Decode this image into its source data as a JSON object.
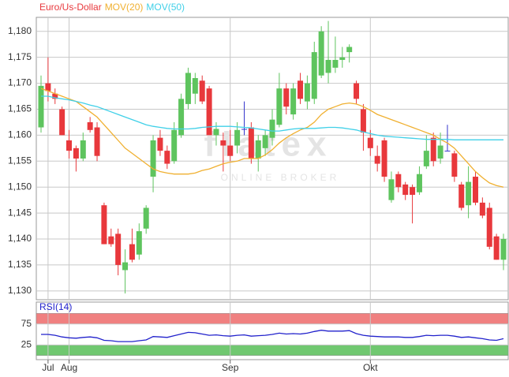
{
  "chart_data": [
    {
      "type": "candlestick",
      "watermark": "flatex",
      "watermark_sub": "ONLINE BROKER",
      "categories": [
        null,
        "Jul",
        null,
        null,
        "Aug",
        null,
        null,
        null,
        null,
        null,
        null,
        null,
        null,
        null,
        null,
        null,
        null,
        null,
        null,
        null,
        null,
        null,
        null,
        null,
        null,
        null,
        null,
        "Sep",
        null,
        null,
        null,
        null,
        null,
        null,
        null,
        null,
        null,
        null,
        null,
        null,
        null,
        null,
        null,
        null,
        null,
        null,
        null,
        "Okt",
        null,
        null,
        null,
        null,
        null,
        null,
        null,
        null,
        null,
        null,
        null,
        null,
        null,
        null,
        null,
        null,
        null,
        null,
        null
      ],
      "up_color": "#5ec45e",
      "down_color": "#e8383c",
      "flat_color": "#3333cc",
      "series": [
        {
          "name": "Euro/Us-Dollar",
          "color": "#e8383c",
          "open": [
            1.1615,
            1.17,
            1.168,
            1.165,
            1.159,
            1.1575,
            1.1555,
            1.1625,
            1.1615,
            1.1465,
            1.1405,
            1.141,
            1.134,
            1.139,
            1.137,
            1.142,
            1.152,
            1.1595,
            1.157,
            1.155,
            1.16,
            1.166,
            1.168,
            1.1705,
            1.169,
            1.16,
            1.159,
            1.158,
            1.158,
            1.1612,
            1.1615,
            1.1555,
            1.1575,
            1.1595,
            1.162,
            1.169,
            1.164,
            1.1705,
            1.1665,
            1.167,
            1.1715,
            1.172,
            1.173,
            1.1745,
            1.176,
            1.17,
            1.165,
            1.1595,
            1.156,
            1.159,
            1.1475,
            1.1525,
            1.1505,
            1.15,
            1.149,
            1.154,
            1.1595,
            1.1555,
            1.157,
            1.1565,
            1.1505,
            1.1465,
            1.152,
            1.147,
            1.146,
            1.1405,
            1.136
          ],
          "high": [
            1.1715,
            1.175,
            1.169,
            1.1655,
            1.161,
            1.158,
            1.1605,
            1.1635,
            1.1625,
            1.147,
            1.142,
            1.142,
            1.138,
            1.142,
            1.143,
            1.1465,
            1.16,
            1.161,
            1.158,
            1.1625,
            1.168,
            1.173,
            1.172,
            1.1715,
            1.1695,
            1.1625,
            1.1605,
            1.161,
            1.1625,
            1.1665,
            1.1625,
            1.16,
            1.161,
            1.165,
            1.172,
            1.17,
            1.17,
            1.172,
            1.1715,
            1.178,
            1.181,
            1.182,
            1.179,
            1.177,
            1.1775,
            1.1705,
            1.166,
            1.161,
            1.158,
            1.1595,
            1.153,
            1.153,
            1.151,
            1.1505,
            1.154,
            1.16,
            1.1605,
            1.1605,
            1.162,
            1.157,
            1.151,
            1.154,
            1.153,
            1.148,
            1.147,
            1.141,
            1.141
          ],
          "low": [
            1.1605,
            1.1665,
            1.166,
            1.16,
            1.1555,
            1.153,
            1.155,
            1.1605,
            1.155,
            1.139,
            1.1385,
            1.133,
            1.1295,
            1.1355,
            1.136,
            1.141,
            1.149,
            1.156,
            1.1535,
            1.1545,
            1.1595,
            1.165,
            1.166,
            1.166,
            1.16,
            1.158,
            1.153,
            1.155,
            1.1565,
            1.16,
            1.1545,
            1.153,
            1.156,
            1.158,
            1.1615,
            1.164,
            1.163,
            1.166,
            1.165,
            1.166,
            1.171,
            1.17,
            1.172,
            1.173,
            1.174,
            1.166,
            1.157,
            1.156,
            1.153,
            1.151,
            1.147,
            1.149,
            1.1475,
            1.143,
            1.1485,
            1.1535,
            1.154,
            1.1545,
            1.157,
            1.151,
            1.1455,
            1.144,
            1.1465,
            1.144,
            1.138,
            1.136,
            1.134
          ],
          "close": [
            1.1695,
            1.1685,
            1.167,
            1.16,
            1.157,
            1.1555,
            1.159,
            1.161,
            1.156,
            1.139,
            1.139,
            1.135,
            1.1355,
            1.136,
            1.1415,
            1.146,
            1.159,
            1.157,
            1.1545,
            1.161,
            1.167,
            1.172,
            1.171,
            1.1665,
            1.16,
            1.1612,
            1.158,
            1.156,
            1.161,
            1.1612,
            1.1555,
            1.159,
            1.16,
            1.163,
            1.169,
            1.1655,
            1.169,
            1.167,
            1.17,
            1.176,
            1.18,
            1.1745,
            1.1745,
            1.175,
            1.177,
            1.167,
            1.1605,
            1.1575,
            1.1545,
            1.152,
            1.1515,
            1.15,
            1.1485,
            1.1485,
            1.1525,
            1.157,
            1.155,
            1.158,
            1.157,
            1.152,
            1.146,
            1.151,
            1.147,
            1.1445,
            1.1385,
            1.136,
            1.14
          ]
        },
        {
          "name": "MOV(20)",
          "color": "#f0b030",
          "values": [
            1.169,
            1.1685,
            1.168,
            1.1675,
            1.167,
            1.1665,
            1.1655,
            1.1645,
            1.1635,
            1.162,
            1.1605,
            1.159,
            1.1575,
            1.1565,
            1.1555,
            1.1545,
            1.1535,
            1.153,
            1.1527,
            1.1525,
            1.1525,
            1.1525,
            1.1527,
            1.1532,
            1.1535,
            1.154,
            1.1545,
            1.1548,
            1.155,
            1.1555,
            1.1555,
            1.1555,
            1.1562,
            1.1572,
            1.1585,
            1.1595,
            1.1603,
            1.161,
            1.1615,
            1.1625,
            1.164,
            1.165,
            1.1655,
            1.166,
            1.1662,
            1.166,
            1.1655,
            1.1648,
            1.164,
            1.1635,
            1.163,
            1.1625,
            1.162,
            1.1615,
            1.161,
            1.1605,
            1.16,
            1.1592,
            1.1585,
            1.1575,
            1.156,
            1.1545,
            1.153,
            1.1518,
            1.1508,
            1.1503,
            1.15
          ]
        },
        {
          "name": "MOV(50)",
          "color": "#40d0e8",
          "values": [
            1.1675,
            1.1675,
            1.1672,
            1.167,
            1.1668,
            1.1665,
            1.1662,
            1.1658,
            1.1655,
            1.165,
            1.1645,
            1.164,
            1.1635,
            1.163,
            1.1625,
            1.162,
            1.1617,
            1.1615,
            1.1613,
            1.1612,
            1.1612,
            1.1612,
            1.1613,
            1.1615,
            1.1616,
            1.1617,
            1.1617,
            1.1617,
            1.1616,
            1.1615,
            1.1614,
            1.1612,
            1.161,
            1.1608,
            1.1608,
            1.161,
            1.1612,
            1.1613,
            1.1613,
            1.1613,
            1.1614,
            1.1615,
            1.1615,
            1.1614,
            1.1612,
            1.161,
            1.1606,
            1.1603,
            1.16,
            1.1598,
            1.1597,
            1.1596,
            1.1595,
            1.1594,
            1.1593,
            1.1592,
            1.1592,
            1.1592,
            1.1592,
            1.1591,
            1.1591,
            1.1591,
            1.1591,
            1.1591,
            1.1591,
            1.1591,
            1.1591
          ]
        }
      ],
      "ylim": [
        1.1283,
        1.1827
      ],
      "yticks": [
        {
          "value": 1.13,
          "label": "1,130"
        },
        {
          "value": 1.135,
          "label": "1,135"
        },
        {
          "value": 1.14,
          "label": "1,140"
        },
        {
          "value": 1.145,
          "label": "1,145"
        },
        {
          "value": 1.15,
          "label": "1,150"
        },
        {
          "value": 1.155,
          "label": "1,155"
        },
        {
          "value": 1.16,
          "label": "1,160"
        },
        {
          "value": 1.165,
          "label": "1,165"
        },
        {
          "value": 1.17,
          "label": "1,170"
        },
        {
          "value": 1.175,
          "label": "1,175"
        },
        {
          "value": 1.18,
          "label": "1,180"
        }
      ],
      "grid": true
    },
    {
      "type": "line",
      "series": [
        {
          "name": "RSI(14)",
          "color": "#2222cc",
          "values": [
            50,
            50,
            48,
            44,
            42,
            41,
            43,
            44,
            42,
            36,
            35,
            33,
            33,
            33,
            35,
            37,
            45,
            44,
            43,
            47,
            51,
            55,
            54,
            51,
            48,
            49,
            47,
            46,
            48,
            49,
            46,
            47,
            48,
            50,
            53,
            51,
            52,
            51,
            53,
            57,
            60,
            58,
            58,
            58,
            59,
            52,
            48,
            46,
            45,
            44,
            44,
            44,
            43,
            43,
            45,
            48,
            47,
            48,
            48,
            46,
            43,
            44,
            42,
            40,
            37,
            36,
            40
          ]
        }
      ],
      "ylim": [
        -10,
        127
      ],
      "yticks": [
        25,
        75
      ],
      "bands": [
        {
          "from": 75,
          "to": 100,
          "color": "#f08080"
        },
        {
          "from": 0,
          "to": 25,
          "color": "#70c870"
        }
      ],
      "grid": true
    }
  ]
}
